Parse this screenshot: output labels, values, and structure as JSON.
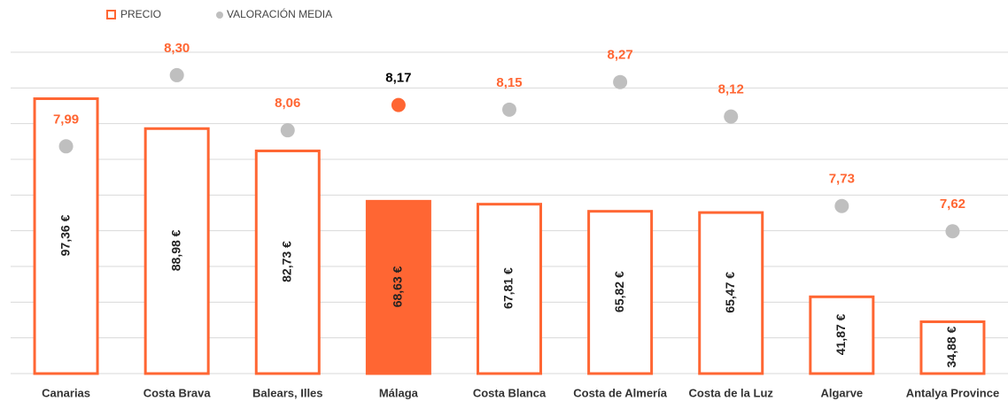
{
  "chart_data": {
    "type": "bar-dot",
    "categories": [
      "Canarias",
      "Costa Brava",
      "Balears, Illes",
      "Málaga",
      "Costa Blanca",
      "Costa de Almería",
      "Costa de la Luz",
      "Algarve",
      "Antalya Province"
    ],
    "series": [
      {
        "name": "PRECIO",
        "color": "#ff6633",
        "values": [
          97.36,
          88.98,
          82.73,
          68.63,
          67.81,
          65.82,
          65.47,
          41.87,
          34.88
        ],
        "value_labels": [
          "97,36 €",
          "88,98 €",
          "82,73 €",
          "68,63 €",
          "67,81 €",
          "65,82 €",
          "65,47 €",
          "41,87 €",
          "34,88 €"
        ]
      },
      {
        "name": "VALORACIÓN MEDIA",
        "color": "#bfbfbf",
        "axis": "y2",
        "values": [
          7.99,
          8.3,
          8.06,
          8.17,
          8.15,
          8.27,
          8.12,
          7.73,
          7.62
        ],
        "value_labels": [
          "7,99",
          "8,30",
          "8,06",
          "8,17",
          "8,15",
          "8,27",
          "8,12",
          "7,73",
          "7,62"
        ]
      }
    ],
    "highlight": "Málaga",
    "highlight_color": "#ff6633",
    "highlight_label_color": "#000000",
    "ylim": [
      20,
      110
    ],
    "yticks": [
      20,
      30,
      40,
      50,
      60,
      70,
      80,
      90,
      100,
      110
    ],
    "y2lim": [
      7.0,
      8.4
    ],
    "grid": true,
    "legend": "top-left"
  }
}
